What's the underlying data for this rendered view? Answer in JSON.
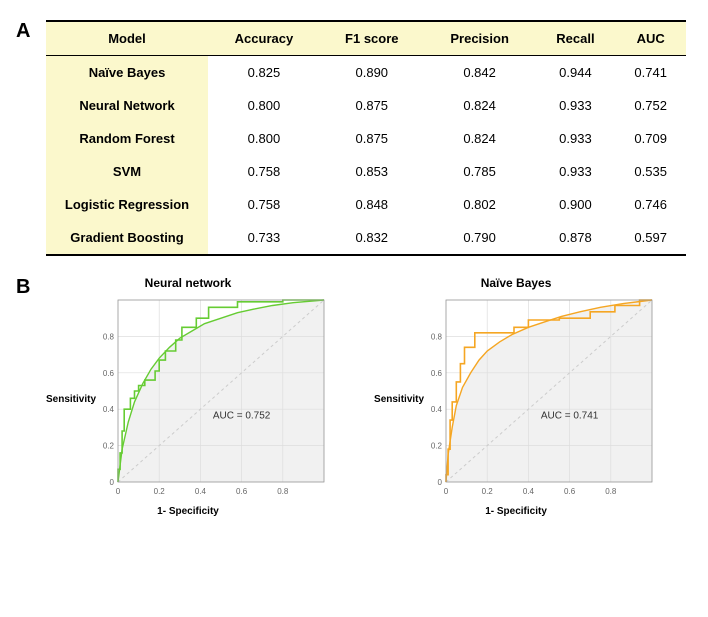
{
  "panelA": {
    "label": "A",
    "header_bg": "#fbf8cc",
    "columns": [
      "Model",
      "Accuracy",
      "F1 score",
      "Precision",
      "Recall",
      "AUC"
    ],
    "rows": [
      {
        "model": "Naïve Bayes",
        "accuracy": "0.825",
        "f1": "0.890",
        "precision": "0.842",
        "recall": "0.944",
        "auc": "0.741"
      },
      {
        "model": "Neural Network",
        "accuracy": "0.800",
        "f1": "0.875",
        "precision": "0.824",
        "recall": "0.933",
        "auc": "0.752"
      },
      {
        "model": "Random Forest",
        "accuracy": "0.800",
        "f1": "0.875",
        "precision": "0.824",
        "recall": "0.933",
        "auc": "0.709"
      },
      {
        "model": "SVM",
        "accuracy": "0.758",
        "f1": "0.853",
        "precision": "0.785",
        "recall": "0.933",
        "auc": "0.535"
      },
      {
        "model": "Logistic Regression",
        "accuracy": "0.758",
        "f1": "0.848",
        "precision": "0.802",
        "recall": "0.900",
        "auc": "0.746"
      },
      {
        "model": "Gradient Boosting",
        "accuracy": "0.733",
        "f1": "0.832",
        "precision": "0.790",
        "recall": "0.878",
        "auc": "0.597"
      }
    ]
  },
  "panelB": {
    "label": "B",
    "ylabel": "Sensitivity",
    "xlabel": "1- Specificity",
    "xticks": [
      0,
      0.2,
      0.4,
      0.6,
      0.8,
      1.0
    ],
    "tick_labels": [
      "0",
      "0.2",
      "0.4",
      "0.6",
      "0.8",
      ""
    ],
    "grid_color": "#dddddd",
    "fill_color": "#f1f1f1",
    "charts": [
      {
        "title": "Neural network",
        "auc_label": "AUC = 0.752",
        "line_color": "#66cc33",
        "smooth_pts": [
          [
            0,
            0
          ],
          [
            0.02,
            0.18
          ],
          [
            0.05,
            0.33
          ],
          [
            0.08,
            0.44
          ],
          [
            0.12,
            0.54
          ],
          [
            0.16,
            0.62
          ],
          [
            0.2,
            0.68
          ],
          [
            0.25,
            0.74
          ],
          [
            0.3,
            0.79
          ],
          [
            0.36,
            0.83
          ],
          [
            0.42,
            0.87
          ],
          [
            0.5,
            0.9
          ],
          [
            0.58,
            0.93
          ],
          [
            0.66,
            0.95
          ],
          [
            0.75,
            0.97
          ],
          [
            0.85,
            0.985
          ],
          [
            1.0,
            1.0
          ]
        ],
        "step_pts": [
          [
            0,
            0
          ],
          [
            0,
            0.07
          ],
          [
            0.01,
            0.07
          ],
          [
            0.01,
            0.16
          ],
          [
            0.02,
            0.16
          ],
          [
            0.02,
            0.28
          ],
          [
            0.03,
            0.28
          ],
          [
            0.03,
            0.4
          ],
          [
            0.06,
            0.4
          ],
          [
            0.06,
            0.46
          ],
          [
            0.08,
            0.46
          ],
          [
            0.08,
            0.5
          ],
          [
            0.1,
            0.5
          ],
          [
            0.1,
            0.53
          ],
          [
            0.13,
            0.53
          ],
          [
            0.13,
            0.56
          ],
          [
            0.18,
            0.56
          ],
          [
            0.18,
            0.61
          ],
          [
            0.2,
            0.61
          ],
          [
            0.2,
            0.67
          ],
          [
            0.23,
            0.67
          ],
          [
            0.23,
            0.72
          ],
          [
            0.28,
            0.72
          ],
          [
            0.28,
            0.78
          ],
          [
            0.31,
            0.78
          ],
          [
            0.31,
            0.85
          ],
          [
            0.38,
            0.85
          ],
          [
            0.38,
            0.9
          ],
          [
            0.44,
            0.9
          ],
          [
            0.44,
            0.96
          ],
          [
            0.58,
            0.96
          ],
          [
            0.58,
            0.99
          ],
          [
            0.8,
            0.99
          ],
          [
            0.8,
            1.0
          ],
          [
            1.0,
            1.0
          ]
        ]
      },
      {
        "title": "Naïve Bayes",
        "auc_label": "AUC = 0.741",
        "line_color": "#f5a623",
        "smooth_pts": [
          [
            0,
            0
          ],
          [
            0.01,
            0.15
          ],
          [
            0.03,
            0.3
          ],
          [
            0.05,
            0.42
          ],
          [
            0.08,
            0.52
          ],
          [
            0.12,
            0.6
          ],
          [
            0.16,
            0.67
          ],
          [
            0.2,
            0.72
          ],
          [
            0.26,
            0.77
          ],
          [
            0.32,
            0.81
          ],
          [
            0.4,
            0.85
          ],
          [
            0.48,
            0.88
          ],
          [
            0.56,
            0.91
          ],
          [
            0.65,
            0.935
          ],
          [
            0.75,
            0.96
          ],
          [
            0.86,
            0.98
          ],
          [
            1.0,
            1.0
          ]
        ],
        "step_pts": [
          [
            0,
            0
          ],
          [
            0,
            0.04
          ],
          [
            0.01,
            0.04
          ],
          [
            0.01,
            0.18
          ],
          [
            0.02,
            0.18
          ],
          [
            0.02,
            0.34
          ],
          [
            0.03,
            0.34
          ],
          [
            0.03,
            0.44
          ],
          [
            0.05,
            0.44
          ],
          [
            0.05,
            0.55
          ],
          [
            0.07,
            0.55
          ],
          [
            0.07,
            0.65
          ],
          [
            0.09,
            0.65
          ],
          [
            0.09,
            0.74
          ],
          [
            0.14,
            0.74
          ],
          [
            0.14,
            0.82
          ],
          [
            0.33,
            0.82
          ],
          [
            0.33,
            0.85
          ],
          [
            0.4,
            0.85
          ],
          [
            0.4,
            0.89
          ],
          [
            0.55,
            0.89
          ],
          [
            0.55,
            0.9
          ],
          [
            0.7,
            0.9
          ],
          [
            0.7,
            0.935
          ],
          [
            0.82,
            0.935
          ],
          [
            0.82,
            0.97
          ],
          [
            0.94,
            0.97
          ],
          [
            0.94,
            1.0
          ],
          [
            1.0,
            1.0
          ]
        ]
      }
    ]
  }
}
